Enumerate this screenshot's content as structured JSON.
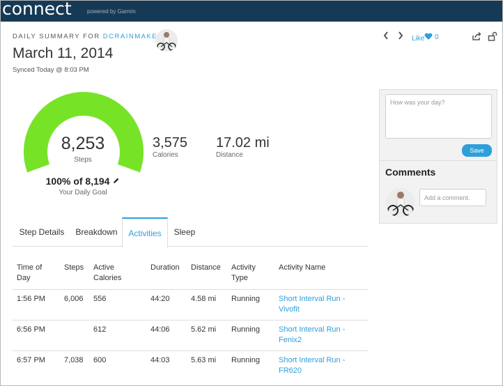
{
  "header": {
    "logo": "connect",
    "powered_by": "powered by Garmin"
  },
  "summary": {
    "daily_summary_prefix": "DAILY SUMMARY FOR",
    "username": "DCRAINMAKER",
    "date": "March 11, 2014",
    "synced": "Synced Today @ 8:03 PM"
  },
  "nav": {
    "prev_icon": "chevron-left-icon",
    "next_icon": "chevron-right-icon",
    "like_label": "Like",
    "like_count": "0",
    "share_icon": "share-icon",
    "lock_icon": "lock-open-icon"
  },
  "steps": {
    "value": "8,253",
    "label": "Steps",
    "goal_text": "100% of 8,194",
    "goal_label": "Your Daily Goal",
    "goal_fraction": 1.0,
    "gauge_color": "#77e327"
  },
  "stats": {
    "calories_value": "3,575",
    "calories_label": "Calories",
    "distance_value": "17.02 mi",
    "distance_label": "Distance"
  },
  "panel": {
    "day_placeholder": "How was your day?",
    "save_label": "Save",
    "comments_title": "Comments",
    "comment_placeholder": "Add a comment."
  },
  "tabs": [
    {
      "label": "Step Details",
      "active": false
    },
    {
      "label": "Breakdown",
      "active": false
    },
    {
      "label": "Activities",
      "active": true
    },
    {
      "label": "Sleep",
      "active": false
    }
  ],
  "table": {
    "headers": {
      "time": "Time of Day",
      "steps": "Steps",
      "calories": "Active Calories",
      "duration": "Duration",
      "distance": "Distance",
      "type": "Activity Type",
      "name": "Activity Name"
    },
    "rows": [
      {
        "time": "1:56 PM",
        "steps": "6,006",
        "calories": "556",
        "duration": "44:20",
        "distance": "4.58 mi",
        "type": "Running",
        "name": "Short Interval Run - Vivofit"
      },
      {
        "time": "6:56 PM",
        "steps": "",
        "calories": "612",
        "duration": "44:06",
        "distance": "5.62 mi",
        "type": "Running",
        "name": "Short Interval Run - Fenix2"
      },
      {
        "time": "6:57 PM",
        "steps": "7,038",
        "calories": "600",
        "duration": "44:03",
        "distance": "5.63 mi",
        "type": "Running",
        "name": "Short Interval Run - FR620"
      }
    ]
  },
  "colors": {
    "header_bg": "#163a55",
    "accent": "#2d9fd9",
    "gauge": "#77e327"
  }
}
